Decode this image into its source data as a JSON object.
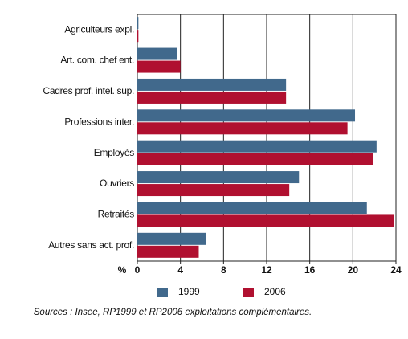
{
  "chart_data": {
    "type": "bar",
    "orientation": "horizontal",
    "categories": [
      "Agriculteurs expl.",
      "Art. com. chef ent.",
      "Cadres prof. intel. sup.",
      "Professions inter.",
      "Employés",
      "Ouvriers",
      "Retraités",
      "Autres sans act. prof."
    ],
    "series": [
      {
        "name": "1999",
        "color": "#41698c",
        "values": [
          0.1,
          3.7,
          13.8,
          20.2,
          22.2,
          15.0,
          21.3,
          6.4
        ]
      },
      {
        "name": "2006",
        "color": "#b01030",
        "values": [
          0.1,
          4.0,
          13.8,
          19.5,
          21.9,
          14.1,
          23.8,
          5.7
        ]
      }
    ],
    "xlabel": "%",
    "xlim": [
      0,
      24
    ],
    "xticks": [
      0,
      4,
      8,
      12,
      16,
      20,
      24
    ],
    "grid": true,
    "source": "Sources : Insee, RP1999 et RP2006 exploitations complémentaires."
  }
}
